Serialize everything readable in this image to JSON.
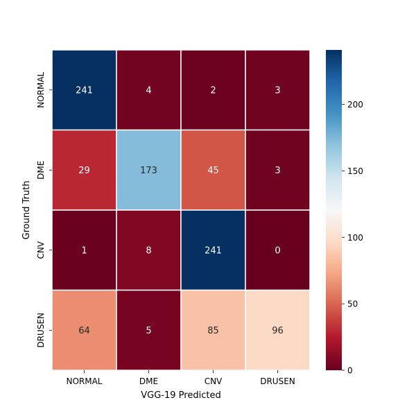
{
  "chart_data": {
    "type": "heatmap",
    "title": "",
    "xlabel": "VGG-19 Predicted",
    "ylabel": "Ground Truth",
    "x_categories": [
      "NORMAL",
      "DME",
      "CNV",
      "DRUSEN"
    ],
    "y_categories": [
      "NORMAL",
      "DME",
      "CNV",
      "DRUSEN"
    ],
    "matrix": [
      [
        241,
        4,
        2,
        3
      ],
      [
        29,
        173,
        45,
        3
      ],
      [
        1,
        8,
        241,
        0
      ],
      [
        64,
        5,
        85,
        96
      ]
    ],
    "colorbar": {
      "range": [
        0,
        241
      ],
      "ticks": [
        0,
        50,
        100,
        150,
        200
      ],
      "colormap": "RdBu"
    }
  }
}
